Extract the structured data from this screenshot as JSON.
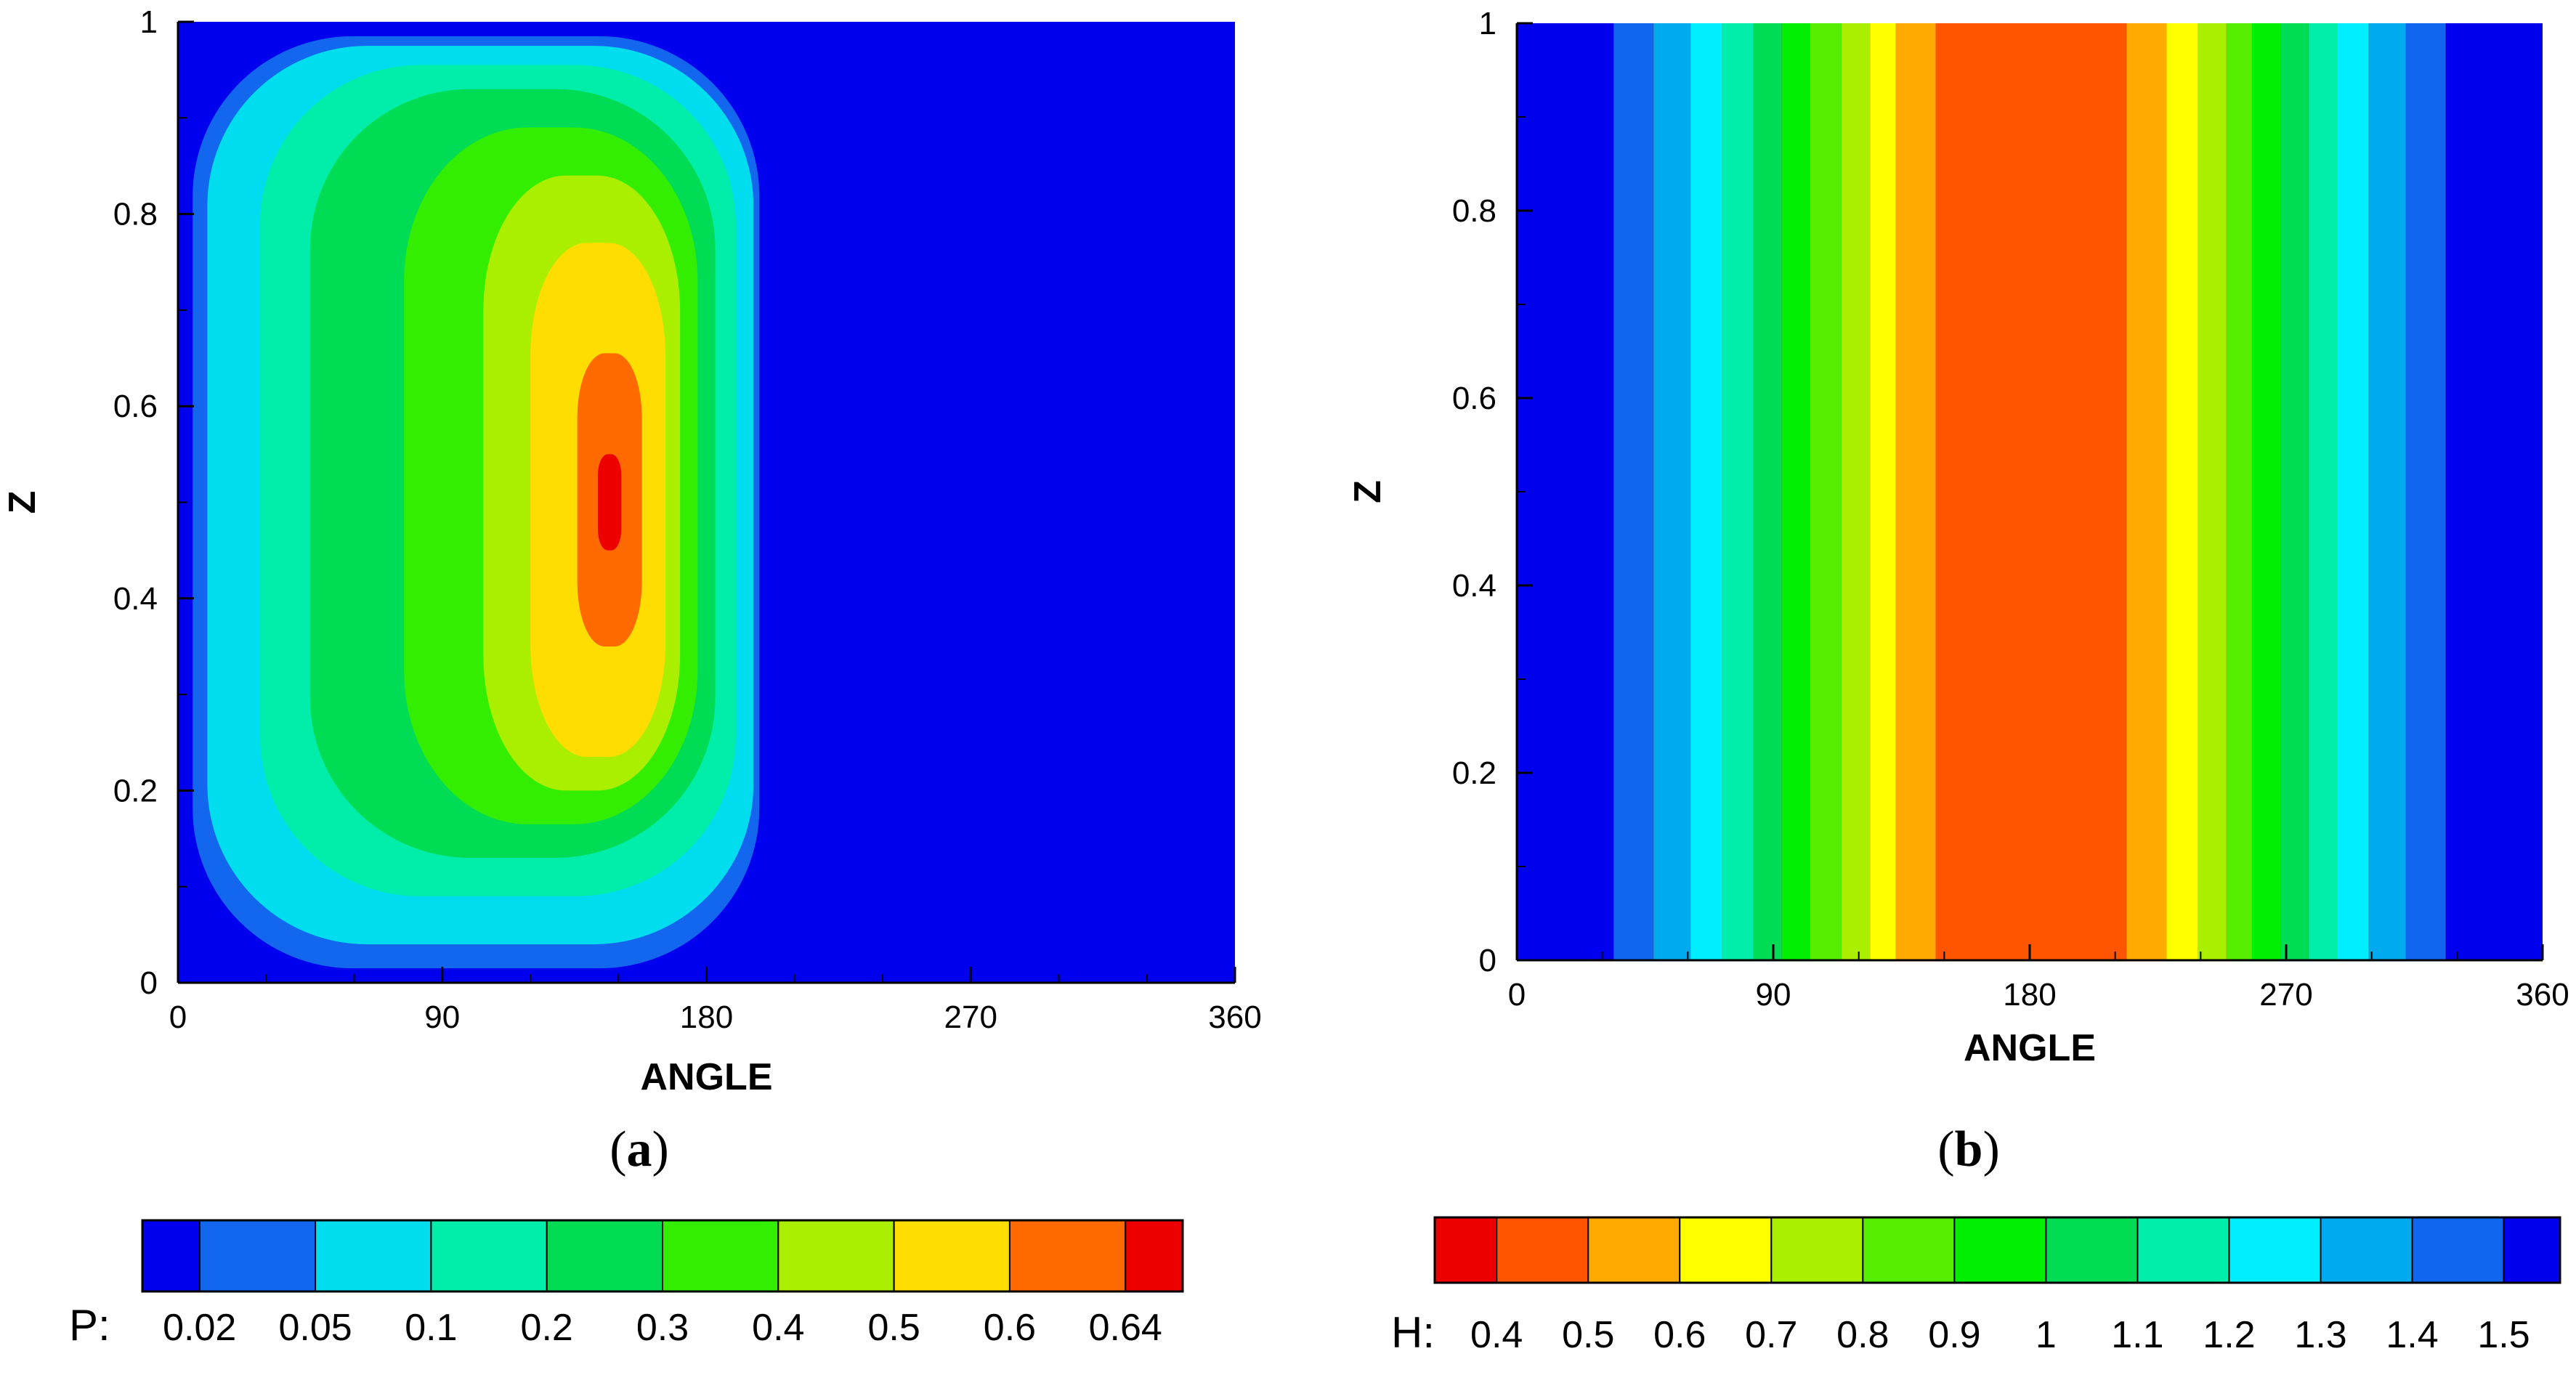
{
  "chart_data": [
    {
      "type": "heatmap",
      "panel_label": "(a)",
      "panel_letter": "a",
      "xlabel": "ANGLE",
      "ylabel": "Z",
      "xlim": [
        0,
        360
      ],
      "ylim": [
        0,
        1
      ],
      "x_ticks": [
        0,
        90,
        180,
        270,
        360
      ],
      "y_ticks": [
        0,
        0.2,
        0.4,
        0.6,
        0.8,
        1
      ],
      "x_tick_labels": [
        "0",
        "90",
        "180",
        "270",
        "360"
      ],
      "y_tick_labels": [
        "0",
        "0.2",
        "0.4",
        "0.6",
        "0.8",
        "1"
      ],
      "colorbar": {
        "prefix": "P:",
        "labels": [
          "0.02",
          "0.05",
          "0.1",
          "0.2",
          "0.3",
          "0.4",
          "0.5",
          "0.6",
          "0.64"
        ],
        "colors": [
          "#0000ee",
          "#1366ee",
          "#00ddee",
          "#00eeaa",
          "#00dd55",
          "#33ee00",
          "#aaee00",
          "#ffdd00",
          "#ff6a00",
          "#ee0000"
        ]
      },
      "contours": [
        {
          "level": "0.02",
          "color": "#1366ee",
          "x0": 5,
          "x1": 198,
          "y0": 0.015,
          "y1": 0.985
        },
        {
          "level": "0.05",
          "color": "#00ddee",
          "x0": 10,
          "x1": 196,
          "y0": 0.04,
          "y1": 0.975
        },
        {
          "level": "0.1",
          "color": "#00eeaa",
          "x0": 28,
          "x1": 190,
          "y0": 0.09,
          "y1": 0.955
        },
        {
          "level": "0.2",
          "color": "#00dd55",
          "x0": 45,
          "x1": 183,
          "y0": 0.13,
          "y1": 0.93
        },
        {
          "level": "0.3",
          "color": "#33ee00",
          "x0": 77,
          "x1": 177,
          "y0": 0.165,
          "y1": 0.89
        },
        {
          "level": "0.4",
          "color": "#aaee00",
          "x0": 104,
          "x1": 171,
          "y0": 0.2,
          "y1": 0.84
        },
        {
          "level": "0.5",
          "color": "#ffdd00",
          "x0": 120,
          "x1": 166,
          "y0": 0.235,
          "y1": 0.77
        },
        {
          "level": "0.6",
          "color": "#ff6a00",
          "x0": 136,
          "x1": 158,
          "y0": 0.35,
          "y1": 0.655
        },
        {
          "level": "0.64",
          "color": "#ee0000",
          "x0": 143,
          "x1": 151,
          "y0": 0.45,
          "y1": 0.55
        }
      ]
    },
    {
      "type": "heatmap",
      "panel_label": "(b)",
      "panel_letter": "b",
      "xlabel": "ANGLE",
      "ylabel": "Z",
      "xlim": [
        0,
        360
      ],
      "ylim": [
        0,
        1
      ],
      "x_ticks": [
        0,
        90,
        180,
        270,
        360
      ],
      "y_ticks": [
        0,
        0.2,
        0.4,
        0.6,
        0.8,
        1
      ],
      "x_tick_labels": [
        "0",
        "90",
        "180",
        "270",
        "360"
      ],
      "y_tick_labels": [
        "0",
        "0.2",
        "0.4",
        "0.6",
        "0.8",
        "1"
      ],
      "colorbar": {
        "prefix": "H:",
        "labels": [
          "0.4",
          "0.5",
          "0.6",
          "0.7",
          "0.8",
          "0.9",
          "1",
          "1.1",
          "1.2",
          "1.3",
          "1.4",
          "1.5"
        ],
        "colors": [
          "#ee0000",
          "#ff5500",
          "#ffaa00",
          "#ffff00",
          "#aaee00",
          "#55ee00",
          "#00ee00",
          "#00dd55",
          "#00eeaa",
          "#00eeff",
          "#00aaee",
          "#1166ee",
          "#0000ee"
        ]
      },
      "bands": [
        {
          "x0": 0,
          "x1": 34,
          "color": "#0000ee"
        },
        {
          "x0": 34,
          "x1": 48,
          "color": "#1166ee"
        },
        {
          "x0": 48,
          "x1": 61,
          "color": "#00aaee"
        },
        {
          "x0": 61,
          "x1": 72,
          "color": "#00eeff"
        },
        {
          "x0": 72,
          "x1": 83,
          "color": "#00eeaa"
        },
        {
          "x0": 83,
          "x1": 93,
          "color": "#00dd55"
        },
        {
          "x0": 93,
          "x1": 103,
          "color": "#00ee00"
        },
        {
          "x0": 103,
          "x1": 114,
          "color": "#55ee00"
        },
        {
          "x0": 114,
          "x1": 124,
          "color": "#aaee00"
        },
        {
          "x0": 124,
          "x1": 133,
          "color": "#ffff00"
        },
        {
          "x0": 133,
          "x1": 147,
          "color": "#ffaa00"
        },
        {
          "x0": 147,
          "x1": 214,
          "color": "#ff5500"
        },
        {
          "x0": 214,
          "x1": 228,
          "color": "#ffaa00"
        },
        {
          "x0": 228,
          "x1": 239,
          "color": "#ffff00"
        },
        {
          "x0": 239,
          "x1": 249,
          "color": "#aaee00"
        },
        {
          "x0": 249,
          "x1": 258,
          "color": "#55ee00"
        },
        {
          "x0": 258,
          "x1": 268,
          "color": "#00ee00"
        },
        {
          "x0": 268,
          "x1": 278,
          "color": "#00dd55"
        },
        {
          "x0": 278,
          "x1": 288,
          "color": "#00eeaa"
        },
        {
          "x0": 288,
          "x1": 299,
          "color": "#00eeff"
        },
        {
          "x0": 299,
          "x1": 312,
          "color": "#00aaee"
        },
        {
          "x0": 312,
          "x1": 326,
          "color": "#1166ee"
        },
        {
          "x0": 326,
          "x1": 360,
          "color": "#0000ee"
        }
      ]
    }
  ]
}
